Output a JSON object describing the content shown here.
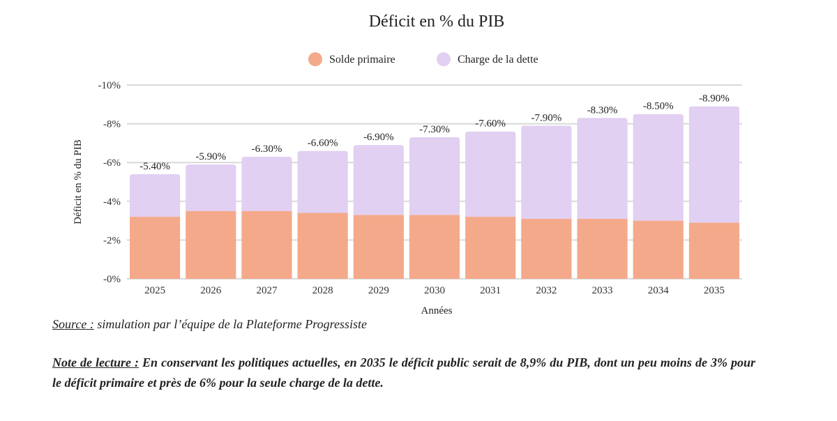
{
  "chart_data": {
    "type": "bar",
    "stacked": true,
    "title": "Déficit en % du PIB",
    "xlabel": "Années",
    "ylabel": "Déficit en % du PIB",
    "categories": [
      "2025",
      "2026",
      "2027",
      "2028",
      "2029",
      "2030",
      "2031",
      "2032",
      "2033",
      "2034",
      "2035"
    ],
    "series": [
      {
        "name": "Solde primaire",
        "color": "#f4a98a",
        "values": [
          3.2,
          3.5,
          3.5,
          3.4,
          3.3,
          3.3,
          3.2,
          3.1,
          3.1,
          3.0,
          2.9
        ]
      },
      {
        "name": "Charge de la dette",
        "color": "#e1d0f2",
        "values": [
          2.2,
          2.4,
          2.8,
          3.2,
          3.6,
          4.0,
          4.4,
          4.8,
          5.2,
          5.5,
          6.0
        ]
      }
    ],
    "totals": [
      5.4,
      5.9,
      6.3,
      6.6,
      6.9,
      7.3,
      7.6,
      7.9,
      8.3,
      8.5,
      8.9
    ],
    "total_labels": [
      "-5.40%",
      "-5.90%",
      "-6.30%",
      "-6.60%",
      "-6.90%",
      "-7.30%",
      "-7.60%",
      "-7.90%",
      "-8.30%",
      "-8.50%",
      "-8.90%"
    ],
    "yticks": [
      0,
      2,
      4,
      6,
      8,
      10
    ],
    "ytick_labels": [
      "-0%",
      "-2%",
      "-4%",
      "-6%",
      "-8%",
      "-10%"
    ],
    "ylim": [
      0,
      10
    ],
    "grid": true,
    "legend_position": "top-center"
  },
  "source": {
    "label": "Source :",
    "text": " simulation par l’équipe de la Plateforme Progressiste"
  },
  "note": {
    "label": "Note de lecture :",
    "text": " En conservant les politiques actuelles, en 2035 le déficit public serait de 8,9% du PIB, dont un peu moins de 3% pour le déficit primaire et près de 6% pour la seule charge de la dette."
  }
}
